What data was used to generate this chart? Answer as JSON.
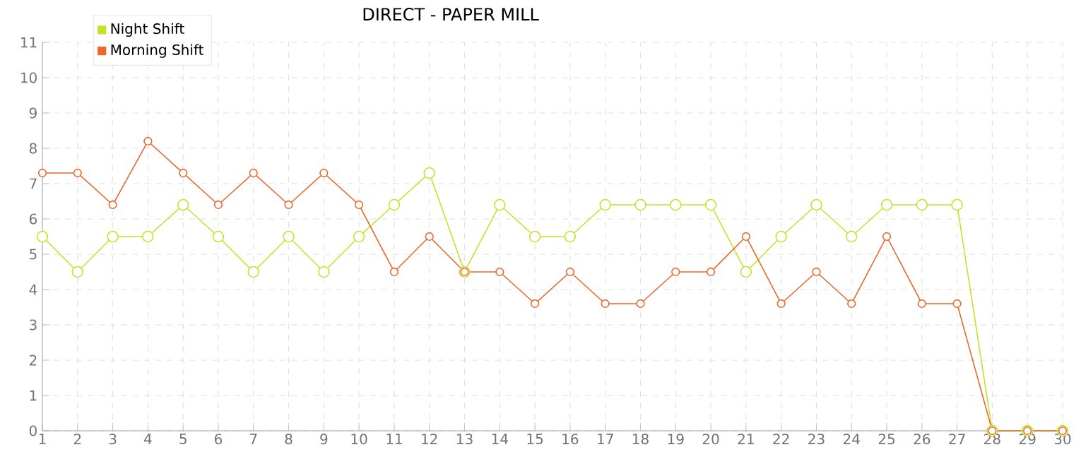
{
  "chart_data": {
    "type": "line",
    "title": "DIRECT - PAPER MILL",
    "x": [
      1,
      2,
      3,
      4,
      5,
      6,
      7,
      8,
      9,
      10,
      11,
      12,
      13,
      14,
      15,
      16,
      17,
      18,
      19,
      20,
      21,
      22,
      23,
      24,
      25,
      26,
      27,
      28,
      29,
      30
    ],
    "series": [
      {
        "name": "Night Shift",
        "color": "#c8e02c",
        "values": [
          5.5,
          4.5,
          5.5,
          5.5,
          6.4,
          5.5,
          4.5,
          5.5,
          4.5,
          5.5,
          6.4,
          7.3,
          4.5,
          6.4,
          5.5,
          5.5,
          6.4,
          6.4,
          6.4,
          6.4,
          4.5,
          5.5,
          6.4,
          5.5,
          6.4,
          6.4,
          6.4,
          0,
          0,
          0
        ]
      },
      {
        "name": "Morning Shift",
        "color": "#e8692e",
        "values": [
          7.3,
          7.3,
          6.4,
          8.2,
          7.3,
          6.4,
          7.3,
          6.4,
          7.3,
          6.4,
          4.5,
          5.5,
          4.5,
          4.5,
          3.6,
          4.5,
          3.6,
          3.6,
          4.5,
          4.5,
          5.5,
          3.6,
          4.5,
          3.6,
          5.5,
          3.6,
          3.6,
          0,
          0,
          0
        ]
      }
    ],
    "xlim": [
      1,
      30
    ],
    "xticks": [
      1,
      2,
      3,
      4,
      5,
      6,
      7,
      8,
      9,
      10,
      11,
      12,
      13,
      14,
      15,
      16,
      17,
      18,
      19,
      20,
      21,
      22,
      23,
      24,
      25,
      26,
      27,
      28,
      29,
      30
    ],
    "ylim": [
      0,
      11
    ],
    "yticks": [
      0,
      1,
      2,
      3,
      4,
      5,
      6,
      7,
      8,
      9,
      10,
      11
    ],
    "grid": true,
    "legend": "top left",
    "marker": "circle",
    "line_style": "solid"
  }
}
